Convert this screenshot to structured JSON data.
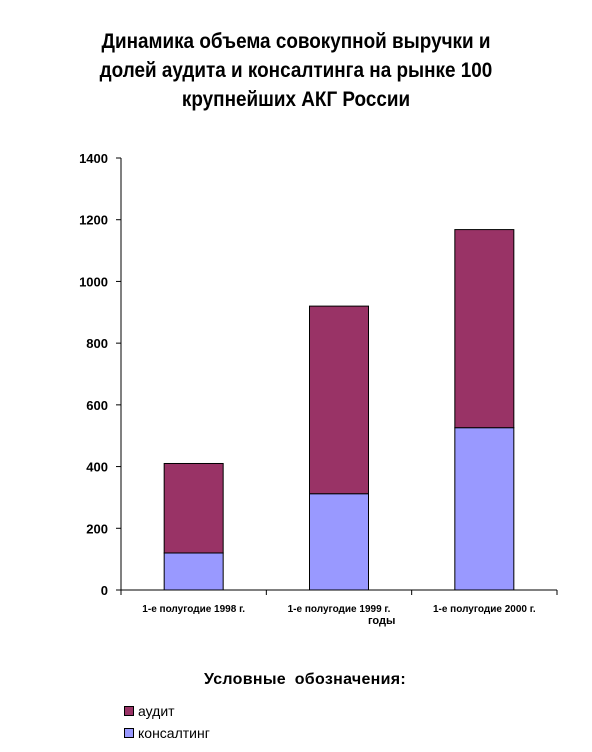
{
  "title_lines": [
    "Динамика объема совокупной выручки и",
    "долей аудита и консалтинга на рынке 100",
    "крупнейших АКГ России"
  ],
  "legend": {
    "title": "Условные  обозначения:",
    "items": [
      {
        "label": "аудит",
        "color": "#993366"
      },
      {
        "label": "консалтинг",
        "color": "#9999ff"
      }
    ]
  },
  "chart_data": {
    "type": "bar",
    "stacked": true,
    "title": "Динамика объема совокупной выручки и долей аудита и консалтинга на рынке 100 крупнейших АКГ России",
    "xlabel": "годы",
    "ylabel": "",
    "categories": [
      "1-е полугодие 1998 г.",
      "1-е полугодие 1999 г.",
      "1-е полугодие 2000 г."
    ],
    "series": [
      {
        "name": "консалтинг",
        "color": "#9999ff",
        "values": [
          120,
          312,
          526
        ]
      },
      {
        "name": "аудит",
        "color": "#993366",
        "values": [
          290,
          608,
          642
        ]
      }
    ],
    "ylim": [
      0,
      1400
    ],
    "yticks": [
      "0",
      "200",
      "400",
      "600",
      "800",
      "1000",
      "1200",
      "1400"
    ],
    "grid": false,
    "legend_position": "bottom-left"
  }
}
